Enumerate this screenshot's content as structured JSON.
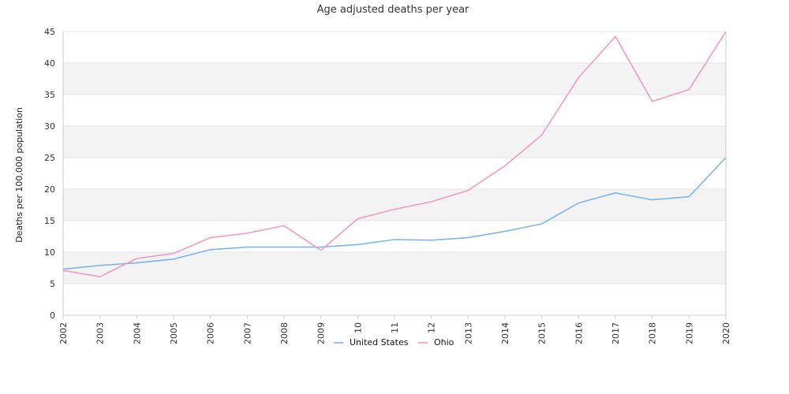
{
  "chart_data": {
    "type": "line",
    "title": "Age adjusted deaths per year",
    "xlabel": "",
    "ylabel": "Deaths per 100,000 population",
    "ylim": [
      0,
      45
    ],
    "yticks": [
      0,
      5,
      10,
      15,
      20,
      25,
      30,
      35,
      40,
      45
    ],
    "grid": "alternating horizontal bands",
    "legend": "bottom-center",
    "categories": [
      "2002",
      "2003",
      "2004",
      "2005",
      "2006",
      "2007",
      "2008",
      "2009",
      "10",
      "11",
      "12",
      "2013",
      "2014",
      "2015",
      "2016",
      "2017",
      "2018",
      "2019",
      "2020"
    ],
    "series": [
      {
        "name": "United States",
        "color": "#7cb5ec",
        "values": [
          7.3,
          7.9,
          8.3,
          8.9,
          10.4,
          10.8,
          10.8,
          10.8,
          11.2,
          12.0,
          11.9,
          12.3,
          13.3,
          14.5,
          17.8,
          19.4,
          18.3,
          18.8,
          25.0
        ]
      },
      {
        "name": "Ohio",
        "color": "#f199c6",
        "values": [
          7.1,
          6.1,
          9.0,
          9.8,
          12.3,
          13.0,
          14.2,
          10.3,
          15.3,
          16.8,
          18.0,
          19.8,
          23.7,
          28.6,
          37.7,
          44.2,
          33.9,
          35.8,
          45.0
        ]
      }
    ]
  }
}
